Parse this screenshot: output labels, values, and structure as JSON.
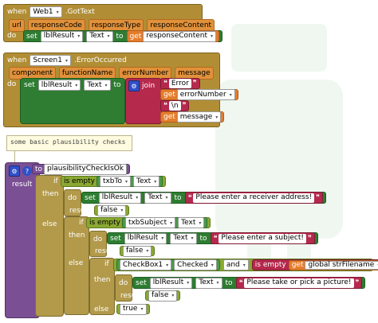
{
  "event_gottext": {
    "when": "when",
    "component": "Web1",
    "event": ".GotText",
    "params": [
      "url",
      "responseCode",
      "responseType",
      "responseContent"
    ],
    "do": "do",
    "set_label": "set",
    "target_component": "lblResult",
    "target_prop": "Text",
    "to": "to",
    "get_label": "get",
    "get_var": "responseContent"
  },
  "event_error": {
    "when": "when",
    "component": "Screen1",
    "event": ".ErrorOccurred",
    "params": [
      "component",
      "functionName",
      "errorNumber",
      "message"
    ],
    "do": "do",
    "set_label": "set",
    "target_component": "lblResult",
    "target_prop": "Text",
    "to": "to",
    "join_label": "join",
    "items": [
      {
        "kind": "text",
        "value": "Error"
      },
      {
        "kind": "get",
        "get_label": "get",
        "value": "errorNumber"
      },
      {
        "kind": "text",
        "value": "\\n"
      },
      {
        "kind": "get",
        "get_label": "get",
        "value": "message"
      }
    ]
  },
  "comment": "some basic plausibility checks",
  "procedure": {
    "to": "to",
    "name": "plausibilityCheckIsOk",
    "result": "result",
    "if1": {
      "if": "if",
      "then": "then",
      "else": "else",
      "is_empty": "is empty",
      "component": "txbTo",
      "prop": "Text",
      "do": "do",
      "set_label": "set",
      "target_component": "lblResult",
      "target_prop": "Text",
      "to": "to",
      "message": "Please enter a receiver address!",
      "result": "result",
      "value": "false"
    },
    "if2": {
      "if": "if",
      "then": "then",
      "else": "else",
      "is_empty": "is empty",
      "component": "txbSubject",
      "prop": "Text",
      "do": "do",
      "set_label": "set",
      "target_component": "lblResult",
      "target_prop": "Text",
      "to": "to",
      "message": "Please enter a subject!",
      "result": "result",
      "value": "false"
    },
    "if3": {
      "if": "if",
      "then": "then",
      "else": "else",
      "component": "CheckBox1",
      "prop": "Checked",
      "and": "and",
      "is_empty": "is empty",
      "get_label": "get",
      "global_var": "global strFilename",
      "do": "do",
      "set_label": "set",
      "target_component": "lblResult",
      "target_prop": "Text",
      "to": "to",
      "message": "Please take or pick a picture!",
      "result": "result",
      "value": "false",
      "else_value": "true"
    }
  }
}
